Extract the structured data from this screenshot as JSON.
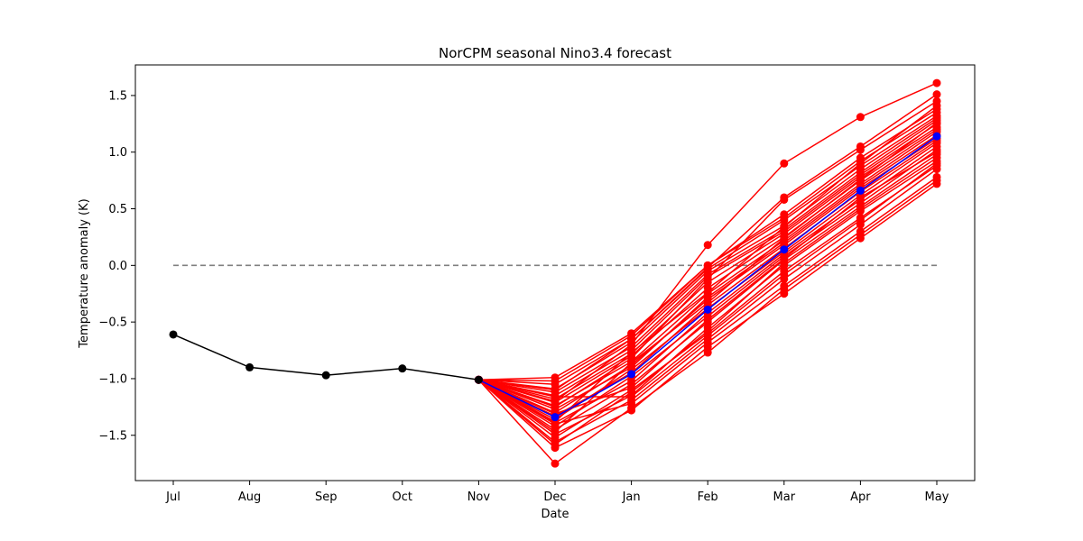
{
  "chart_data": {
    "type": "line",
    "title": "NorCPM seasonal Nino3.4 forecast",
    "xlabel": "Date",
    "ylabel": "Temperature anomaly (K)",
    "categories": [
      "Jul",
      "Aug",
      "Sep",
      "Oct",
      "Nov",
      "Dec",
      "Jan",
      "Feb",
      "Mar",
      "Apr",
      "May"
    ],
    "ylim": [
      -1.9,
      1.77
    ],
    "yticks": [
      -1.5,
      -1.0,
      -0.5,
      0.0,
      0.5,
      1.0,
      1.5
    ],
    "ytick_labels": [
      "−1.5",
      "−1.0",
      "−0.5",
      "0.0",
      "0.5",
      "1.0",
      "1.5"
    ],
    "grid": false,
    "reference_line": {
      "y": 0.0,
      "x_from": "Jul",
      "x_to": "May",
      "style": "dashed",
      "color": "#808080"
    },
    "colors": {
      "observed": "#000000",
      "ensemble": "#ff0000",
      "mean": "#0000ff"
    },
    "observed": {
      "categories": [
        "Jul",
        "Aug",
        "Sep",
        "Oct",
        "Nov"
      ],
      "values": [
        -0.61,
        -0.9,
        -0.97,
        -0.91,
        -1.01
      ]
    },
    "ensemble_mean": {
      "categories": [
        "Nov",
        "Dec",
        "Jan",
        "Feb",
        "Mar",
        "Apr",
        "May"
      ],
      "values": [
        -1.01,
        -1.34,
        -0.96,
        -0.39,
        0.14,
        0.66,
        1.14
      ]
    },
    "ensemble_members": {
      "categories": [
        "Nov",
        "Dec",
        "Jan",
        "Feb",
        "Mar",
        "Apr",
        "May"
      ],
      "members": [
        [
          -1.01,
          -1.75,
          -1.26,
          -0.77,
          -0.21,
          0.27,
          0.75
        ],
        [
          -1.01,
          -1.61,
          -1.28,
          -0.72,
          -0.25,
          0.24,
          0.72
        ],
        [
          -1.01,
          -1.56,
          -1.19,
          -0.65,
          -0.12,
          0.36,
          0.85
        ],
        [
          -1.01,
          -1.52,
          -1.1,
          -0.6,
          -0.05,
          0.42,
          0.88
        ],
        [
          -1.01,
          -1.49,
          -1.15,
          -0.55,
          0.0,
          0.48,
          0.92
        ],
        [
          -1.01,
          -1.45,
          -1.05,
          -0.5,
          0.05,
          0.52,
          0.98
        ],
        [
          -1.01,
          -1.42,
          -0.98,
          -0.45,
          0.08,
          0.55,
          1.02
        ],
        [
          -1.01,
          -1.39,
          -1.02,
          -0.42,
          0.1,
          0.58,
          1.05
        ],
        [
          -1.01,
          -1.36,
          -0.92,
          -0.38,
          0.12,
          0.62,
          1.08
        ],
        [
          -1.01,
          -1.33,
          -0.95,
          -0.35,
          0.15,
          0.65,
          1.1
        ],
        [
          -1.01,
          -1.3,
          -0.88,
          -0.3,
          0.18,
          0.68,
          1.12
        ],
        [
          -1.01,
          -1.27,
          -0.9,
          -0.28,
          0.2,
          0.7,
          1.15
        ],
        [
          -1.01,
          -1.24,
          -0.85,
          -0.25,
          0.22,
          0.72,
          1.18
        ],
        [
          -1.01,
          -1.21,
          -0.8,
          -0.2,
          0.25,
          0.75,
          1.2
        ],
        [
          -1.01,
          -1.18,
          -0.78,
          -0.15,
          0.28,
          0.78,
          1.22
        ],
        [
          -1.01,
          -1.15,
          -0.75,
          -0.1,
          0.3,
          0.8,
          1.25
        ],
        [
          -1.01,
          -1.12,
          -0.72,
          -0.08,
          0.32,
          0.82,
          1.28
        ],
        [
          -1.01,
          -1.09,
          -0.68,
          -0.05,
          0.35,
          0.85,
          1.3
        ],
        [
          -1.01,
          -1.05,
          -0.65,
          -0.03,
          0.4,
          0.88,
          1.32
        ],
        [
          -1.01,
          -1.02,
          -0.62,
          0.0,
          0.42,
          0.92,
          1.35
        ],
        [
          -1.01,
          -0.99,
          -0.6,
          0.0,
          0.45,
          0.95,
          1.38
        ],
        [
          -1.01,
          -1.2,
          -0.7,
          0.18,
          0.9,
          1.31,
          1.61
        ],
        [
          -1.01,
          -1.1,
          -0.65,
          -0.02,
          0.6,
          1.05,
          1.51
        ],
        [
          -1.01,
          -1.25,
          -0.82,
          -0.12,
          0.58,
          1.02,
          1.45
        ],
        [
          -1.01,
          -1.4,
          -1.22,
          -0.68,
          -0.18,
          0.3,
          0.78
        ],
        [
          -1.01,
          -1.58,
          -1.12,
          -0.58,
          0.02,
          0.5,
          0.95
        ],
        [
          -1.01,
          -1.31,
          -1.08,
          -0.48,
          0.06,
          0.6,
          1.0
        ],
        [
          -1.01,
          -1.47,
          -0.86,
          -0.33,
          0.24,
          0.76,
          1.26
        ],
        [
          -1.01,
          -1.38,
          -0.77,
          -0.24,
          0.34,
          0.9,
          1.41
        ],
        [
          -1.01,
          -1.16,
          -1.16,
          -0.62,
          -0.08,
          0.4,
          0.9
        ]
      ]
    }
  }
}
